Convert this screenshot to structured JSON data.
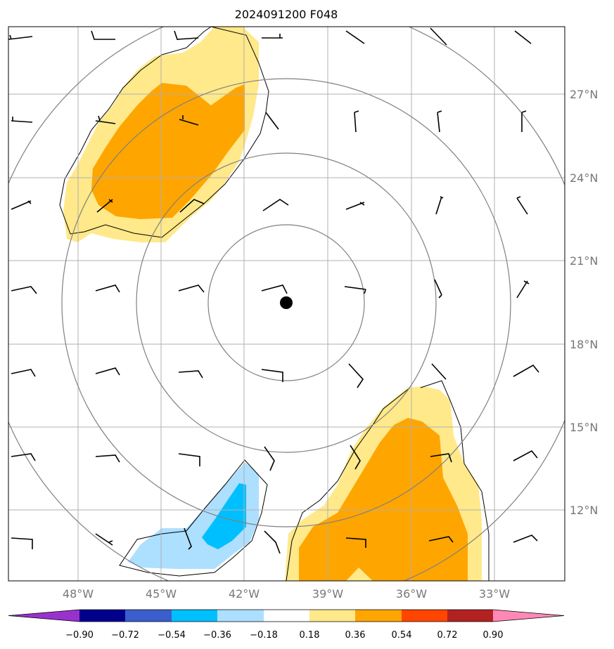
{
  "title": "2024091200 F048",
  "map": {
    "lat_labels": [
      "27°N",
      "24°N",
      "21°N",
      "18°N",
      "15°N",
      "12°N"
    ],
    "lon_labels": [
      "48°W",
      "45°W",
      "42°W",
      "39°W",
      "36°W",
      "33°W"
    ],
    "center_marker": "black-dot",
    "range_rings": 4,
    "shading_colors": {
      "light_yellow": "#FFE98A",
      "orange": "#FFA500",
      "light_blue": "#ADDFFF",
      "deep_sky_blue": "#00BFFF"
    },
    "grid_color": "#b0b0b0",
    "ring_color": "#808080"
  },
  "colorbar": {
    "ticks": [
      "−0.90",
      "−0.72",
      "−0.54",
      "−0.36",
      "−0.18",
      "0.18",
      "0.36",
      "0.54",
      "0.72",
      "0.90"
    ],
    "colors": [
      "#9932CC",
      "#00008B",
      "#3A5FCD",
      "#00BFFF",
      "#ADDFFF",
      "#FFFFFF",
      "#FFE98A",
      "#FFA500",
      "#FF4500",
      "#B22222",
      "#FF89B4"
    ]
  }
}
